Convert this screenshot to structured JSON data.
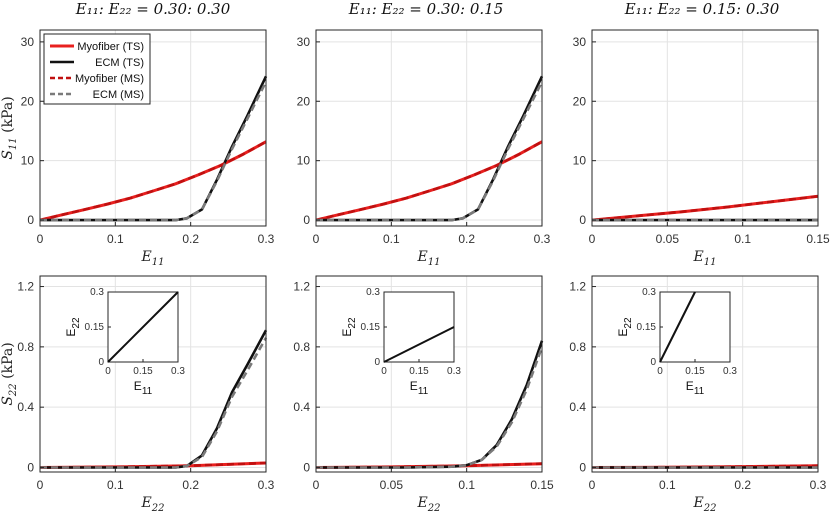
{
  "column_titles": [
    "E₁₁: E₂₂ = 0.30: 0.30",
    "E₁₁: E₂₂ = 0.30: 0.15",
    "E₁₁: E₂₂ = 0.15: 0.30"
  ],
  "legend": {
    "placement": "top-left",
    "entries": [
      {
        "label": "Myofiber (TS)",
        "color": "#e8201f",
        "dash": "solid"
      },
      {
        "label": "ECM (TS)",
        "color": "#111111",
        "dash": "solid"
      },
      {
        "label": "Myofiber (MS)",
        "color": "#c01010",
        "dash": "dashed"
      },
      {
        "label": "ECM (MS)",
        "color": "#7a7a7a",
        "dash": "dashed"
      }
    ]
  },
  "chart_data": [
    {
      "type": "line",
      "xlabel": "E11",
      "ylabel": "S11 (kPa)",
      "xlim": [
        0,
        0.3
      ],
      "ylim": [
        -1,
        32
      ],
      "xticks": [
        0,
        0.1,
        0.2,
        0.3
      ],
      "xticklabels": [
        "0",
        "0.1",
        "0.2",
        "0.3"
      ],
      "yticks": [
        0,
        10,
        20,
        30
      ],
      "yticklabels": [
        "0",
        "10",
        "20",
        "30"
      ],
      "grid": true,
      "show_legend": true,
      "series": [
        {
          "name": "Myofiber (TS)",
          "x": [
            0,
            0.03,
            0.06,
            0.09,
            0.12,
            0.15,
            0.18,
            0.21,
            0.24,
            0.27,
            0.3
          ],
          "y": [
            0,
            0.9,
            1.8,
            2.7,
            3.7,
            4.9,
            6.1,
            7.6,
            9.2,
            11.1,
            13.2
          ]
        },
        {
          "name": "ECM (TS)",
          "x": [
            0,
            0.03,
            0.06,
            0.09,
            0.12,
            0.15,
            0.18,
            0.195,
            0.215,
            0.235,
            0.255,
            0.275,
            0.3
          ],
          "y": [
            0,
            0,
            0,
            0,
            0,
            0,
            0,
            0.3,
            1.8,
            6.8,
            12.4,
            17.5,
            24.2
          ]
        },
        {
          "name": "Myofiber (MS)",
          "x": [
            0,
            0.03,
            0.06,
            0.09,
            0.12,
            0.15,
            0.18,
            0.21,
            0.24,
            0.27,
            0.3
          ],
          "y": [
            0,
            0.9,
            1.8,
            2.7,
            3.7,
            4.9,
            6.1,
            7.6,
            9.2,
            11.1,
            13.2
          ]
        },
        {
          "name": "ECM (MS)",
          "x": [
            0,
            0.03,
            0.06,
            0.09,
            0.12,
            0.15,
            0.18,
            0.195,
            0.215,
            0.235,
            0.255,
            0.275,
            0.3
          ],
          "y": [
            0,
            0,
            0,
            0,
            0,
            0,
            0,
            0.3,
            1.8,
            6.6,
            12.0,
            17.0,
            23.3
          ]
        }
      ]
    },
    {
      "type": "line",
      "xlabel": "E11",
      "ylabel": "",
      "xlim": [
        0,
        0.3
      ],
      "ylim": [
        -1,
        32
      ],
      "xticks": [
        0,
        0.1,
        0.2,
        0.3
      ],
      "xticklabels": [
        "0",
        "0.1",
        "0.2",
        "0.3"
      ],
      "yticks": [
        0,
        10,
        20,
        30
      ],
      "yticklabels": [
        "0",
        "10",
        "20",
        "30"
      ],
      "grid": true,
      "show_legend": false,
      "series": [
        {
          "name": "Myofiber (TS)",
          "x": [
            0,
            0.03,
            0.06,
            0.09,
            0.12,
            0.15,
            0.18,
            0.21,
            0.24,
            0.27,
            0.3
          ],
          "y": [
            0,
            0.9,
            1.8,
            2.7,
            3.7,
            4.9,
            6.1,
            7.6,
            9.2,
            11.1,
            13.2
          ]
        },
        {
          "name": "ECM (TS)",
          "x": [
            0,
            0.03,
            0.06,
            0.09,
            0.12,
            0.15,
            0.18,
            0.195,
            0.215,
            0.235,
            0.255,
            0.275,
            0.3
          ],
          "y": [
            0,
            0,
            0,
            0,
            0,
            0,
            0,
            0.3,
            1.8,
            6.8,
            12.4,
            17.5,
            24.2
          ]
        },
        {
          "name": "Myofiber (MS)",
          "x": [
            0,
            0.03,
            0.06,
            0.09,
            0.12,
            0.15,
            0.18,
            0.21,
            0.24,
            0.27,
            0.3
          ],
          "y": [
            0,
            0.9,
            1.8,
            2.7,
            3.7,
            4.9,
            6.1,
            7.6,
            9.2,
            11.1,
            13.2
          ]
        },
        {
          "name": "ECM (MS)",
          "x": [
            0,
            0.03,
            0.06,
            0.09,
            0.12,
            0.15,
            0.18,
            0.195,
            0.215,
            0.235,
            0.255,
            0.275,
            0.3
          ],
          "y": [
            0,
            0,
            0,
            0,
            0,
            0,
            0,
            0.3,
            1.8,
            6.6,
            12.0,
            17.0,
            23.3
          ]
        }
      ]
    },
    {
      "type": "line",
      "xlabel": "E11",
      "ylabel": "",
      "xlim": [
        0,
        0.15
      ],
      "ylim": [
        -1,
        32
      ],
      "xticks": [
        0,
        0.05,
        0.1,
        0.15
      ],
      "xticklabels": [
        "0",
        "0.05",
        "0.1",
        "0.15"
      ],
      "yticks": [
        0,
        10,
        20,
        30
      ],
      "yticklabels": [
        "0",
        "10",
        "20",
        "30"
      ],
      "grid": true,
      "show_legend": false,
      "series": [
        {
          "name": "Myofiber (TS)",
          "x": [
            0,
            0.03,
            0.06,
            0.09,
            0.12,
            0.15
          ],
          "y": [
            0,
            0.7,
            1.4,
            2.2,
            3.1,
            4.0
          ]
        },
        {
          "name": "ECM (TS)",
          "x": [
            0,
            0.05,
            0.1,
            0.15
          ],
          "y": [
            0,
            0,
            0,
            0
          ]
        },
        {
          "name": "Myofiber (MS)",
          "x": [
            0,
            0.03,
            0.06,
            0.09,
            0.12,
            0.15
          ],
          "y": [
            0,
            0.7,
            1.4,
            2.2,
            3.1,
            4.0
          ]
        },
        {
          "name": "ECM (MS)",
          "x": [
            0,
            0.05,
            0.1,
            0.15
          ],
          "y": [
            0,
            0,
            0,
            0
          ]
        }
      ]
    },
    {
      "type": "line",
      "xlabel": "E22",
      "ylabel": "S22 (kPa)",
      "xlim": [
        0,
        0.3
      ],
      "ylim": [
        -0.03,
        1.27
      ],
      "xticks": [
        0,
        0.1,
        0.2,
        0.3
      ],
      "xticklabels": [
        "0",
        "0.1",
        "0.2",
        "0.3"
      ],
      "yticks": [
        0,
        0.4,
        0.8,
        1.2
      ],
      "yticklabels": [
        "0",
        "0.4",
        "0.8",
        "1.2"
      ],
      "grid": true,
      "show_legend": false,
      "series": [
        {
          "name": "Myofiber (TS)",
          "x": [
            0,
            0.1,
            0.2,
            0.3
          ],
          "y": [
            0,
            0.004,
            0.012,
            0.03
          ]
        },
        {
          "name": "ECM (TS)",
          "x": [
            0,
            0.03,
            0.06,
            0.09,
            0.12,
            0.15,
            0.18,
            0.195,
            0.215,
            0.235,
            0.255,
            0.275,
            0.3
          ],
          "y": [
            0,
            0,
            0,
            0,
            0,
            0,
            0,
            0.01,
            0.08,
            0.26,
            0.5,
            0.68,
            0.91
          ]
        },
        {
          "name": "Myofiber (MS)",
          "x": [
            0,
            0.1,
            0.2,
            0.3
          ],
          "y": [
            0,
            0.004,
            0.012,
            0.03
          ]
        },
        {
          "name": "ECM (MS)",
          "x": [
            0,
            0.03,
            0.06,
            0.09,
            0.12,
            0.15,
            0.18,
            0.195,
            0.215,
            0.235,
            0.255,
            0.275,
            0.3
          ],
          "y": [
            0,
            0,
            0,
            0,
            0,
            0,
            0,
            0.01,
            0.07,
            0.24,
            0.47,
            0.64,
            0.86
          ]
        }
      ],
      "inset": {
        "xlabel": "E11",
        "ylabel": "E22",
        "xlim": [
          0,
          0.3
        ],
        "ylim": [
          0,
          0.3
        ],
        "xticklabels": [
          "0",
          "0.15",
          "0.3"
        ],
        "yticklabels": [
          "0",
          "0.15",
          "0.3"
        ],
        "x": [
          0,
          0.3
        ],
        "y": [
          0,
          0.3
        ]
      }
    },
    {
      "type": "line",
      "xlabel": "E22",
      "ylabel": "",
      "xlim": [
        0,
        0.15
      ],
      "ylim": [
        -0.03,
        1.27
      ],
      "xticks": [
        0,
        0.05,
        0.1,
        0.15
      ],
      "xticklabels": [
        "0",
        "0.05",
        "0.1",
        "0.15"
      ],
      "yticks": [
        0,
        0.4,
        0.8,
        1.2
      ],
      "yticklabels": [
        "0",
        "0.4",
        "0.8",
        "1.2"
      ],
      "grid": true,
      "show_legend": false,
      "series": [
        {
          "name": "Myofiber (TS)",
          "x": [
            0,
            0.05,
            0.1,
            0.15
          ],
          "y": [
            0,
            0.004,
            0.012,
            0.025
          ]
        },
        {
          "name": "ECM (TS)",
          "x": [
            0,
            0.03,
            0.06,
            0.09,
            0.1,
            0.11,
            0.12,
            0.13,
            0.14,
            0.15
          ],
          "y": [
            0,
            0,
            0,
            0.005,
            0.015,
            0.05,
            0.15,
            0.32,
            0.55,
            0.84
          ]
        },
        {
          "name": "Myofiber (MS)",
          "x": [
            0,
            0.05,
            0.1,
            0.15
          ],
          "y": [
            0,
            0.004,
            0.012,
            0.025
          ]
        },
        {
          "name": "ECM (MS)",
          "x": [
            0,
            0.03,
            0.06,
            0.09,
            0.1,
            0.11,
            0.12,
            0.13,
            0.14,
            0.15
          ],
          "y": [
            0,
            0,
            0,
            0.005,
            0.015,
            0.05,
            0.14,
            0.3,
            0.52,
            0.8
          ]
        }
      ],
      "inset": {
        "xlabel": "E11",
        "ylabel": "E22",
        "xlim": [
          0,
          0.3
        ],
        "ylim": [
          0,
          0.3
        ],
        "xticklabels": [
          "0",
          "0.15",
          "0.3"
        ],
        "yticklabels": [
          "0",
          "0.15",
          "0.3"
        ],
        "x": [
          0,
          0.3
        ],
        "y": [
          0,
          0.15
        ]
      }
    },
    {
      "type": "line",
      "xlabel": "E22",
      "ylabel": "",
      "xlim": [
        0,
        0.3
      ],
      "ylim": [
        -0.03,
        1.27
      ],
      "xticks": [
        0,
        0.1,
        0.2,
        0.3
      ],
      "xticklabels": [
        "0",
        "0.1",
        "0.2",
        "0.3"
      ],
      "yticks": [
        0,
        0.4,
        0.8,
        1.2
      ],
      "yticklabels": [
        "0",
        "0.4",
        "0.8",
        "1.2"
      ],
      "grid": true,
      "show_legend": false,
      "series": [
        {
          "name": "Myofiber (TS)",
          "x": [
            0,
            0.1,
            0.2,
            0.3
          ],
          "y": [
            0,
            0.002,
            0.006,
            0.012
          ]
        },
        {
          "name": "ECM (TS)",
          "x": [
            0,
            0.1,
            0.2,
            0.3
          ],
          "y": [
            0,
            0,
            0,
            0
          ]
        },
        {
          "name": "Myofiber (MS)",
          "x": [
            0,
            0.1,
            0.2,
            0.3
          ],
          "y": [
            0,
            0.002,
            0.006,
            0.012
          ]
        },
        {
          "name": "ECM (MS)",
          "x": [
            0,
            0.1,
            0.2,
            0.3
          ],
          "y": [
            0,
            0,
            0,
            0
          ]
        }
      ],
      "inset": {
        "xlabel": "E11",
        "ylabel": "E22",
        "xlim": [
          0,
          0.3
        ],
        "ylim": [
          0,
          0.3
        ],
        "xticklabels": [
          "0",
          "0.15",
          "0.3"
        ],
        "yticklabels": [
          "0",
          "0.15",
          "0.3"
        ],
        "x": [
          0,
          0.15
        ],
        "y": [
          0,
          0.3
        ]
      }
    }
  ]
}
